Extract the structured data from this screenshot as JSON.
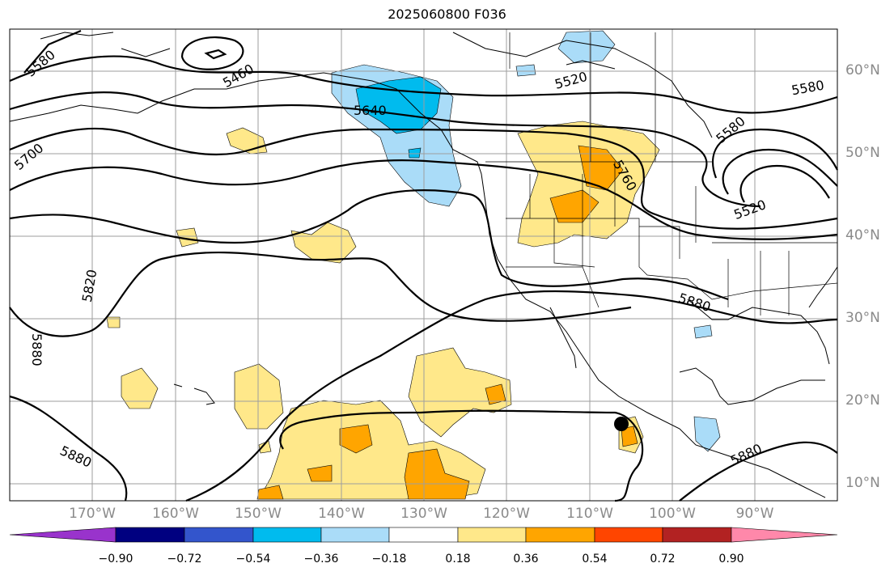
{
  "title": "2025060800 F036",
  "map": {
    "lat_labels": [
      "60°N",
      "50°N",
      "40°N",
      "30°N",
      "20°N",
      "10°N"
    ],
    "lon_labels": [
      "170°W",
      "160°W",
      "150°W",
      "140°W",
      "130°W",
      "120°W",
      "110°W",
      "100°W",
      "90°W"
    ],
    "contour_labels": [
      "5580",
      "5460",
      "5640",
      "5520",
      "5580",
      "5700",
      "5760",
      "5520",
      "5820",
      "5880",
      "5880",
      "5880",
      "5880",
      "5580"
    ],
    "marker": "hurricane-position-dot"
  },
  "colorbar": {
    "ticks": [
      "−0.90",
      "−0.72",
      "−0.54",
      "−0.36",
      "−0.18",
      "0.18",
      "0.36",
      "0.54",
      "0.72",
      "0.90"
    ],
    "colors": [
      "#9933cc",
      "#000080",
      "#3355cc",
      "#00bbee",
      "#aadcf8",
      "#ffffff",
      "#ffe88a",
      "#ffa500",
      "#ff4500",
      "#b22222",
      "#ff88aa"
    ]
  }
}
